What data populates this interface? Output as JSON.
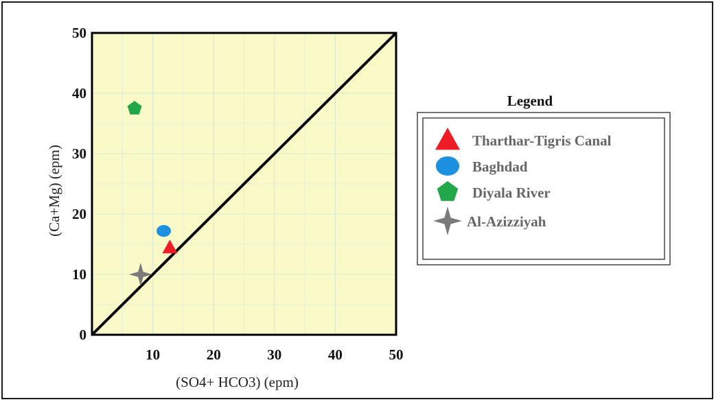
{
  "chart_data": {
    "type": "scatter",
    "xlabel": "(SO4+ HCO3) (epm)",
    "ylabel": "(Ca+Mg) (epm)",
    "xlim": [
      0,
      50
    ],
    "ylim": [
      0,
      50
    ],
    "x_ticks": [
      "10",
      "20",
      "30",
      "40",
      "50"
    ],
    "y_ticks": [
      "0",
      "10",
      "20",
      "30",
      "40",
      "50"
    ],
    "grid": true,
    "background_color": "#fafac8",
    "reference_line": {
      "x": [
        0,
        50
      ],
      "y": [
        0,
        50
      ],
      "color": "#000000"
    },
    "legend": {
      "title": "Legend",
      "position": "right"
    },
    "series": [
      {
        "name": "Tharthar-Tigris Canal",
        "marker": "triangle",
        "color": "#ee1c24",
        "x": [
          12.8
        ],
        "y": [
          14.5
        ]
      },
      {
        "name": "Baghdad",
        "marker": "ellipse",
        "color": "#1e90e0",
        "x": [
          11.8
        ],
        "y": [
          17.2
        ]
      },
      {
        "name": "Diyala River",
        "marker": "pentagon",
        "color": "#22a84a",
        "x": [
          7
        ],
        "y": [
          37.5
        ]
      },
      {
        "name": "Al-Azizziyah",
        "marker": "star4",
        "color": "#7a7a7a",
        "x": [
          8
        ],
        "y": [
          10
        ]
      }
    ]
  }
}
